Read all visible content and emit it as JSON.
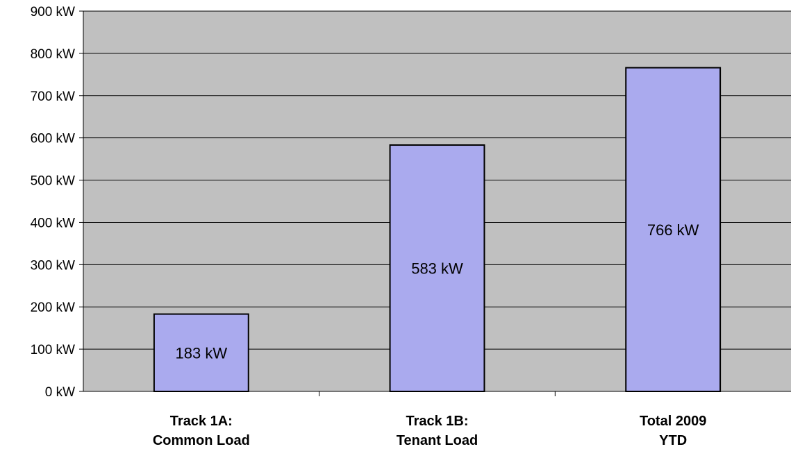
{
  "chart_data": {
    "type": "bar",
    "categories": [
      [
        "Track 1A:",
        "Common Load"
      ],
      [
        "Track 1B:",
        "Tenant Load"
      ],
      [
        "Total 2009",
        "YTD"
      ]
    ],
    "values": [
      183,
      583,
      766
    ],
    "data_labels": [
      "183 kW",
      "583 kW",
      "766 kW"
    ],
    "y_ticks": [
      "0 kW",
      "100 kW",
      "200 kW",
      "300 kW",
      "400 kW",
      "500 kW",
      "600 kW",
      "700 kW",
      "800 kW",
      "900 kW"
    ],
    "unit": "kW",
    "ylim": [
      0,
      900
    ],
    "grid": true,
    "legend": "none",
    "colors": {
      "plot_background": "#c0c0c0",
      "bar_fill": "#aaaaee",
      "bar_stroke": "#000000",
      "gridline": "#000000"
    }
  }
}
